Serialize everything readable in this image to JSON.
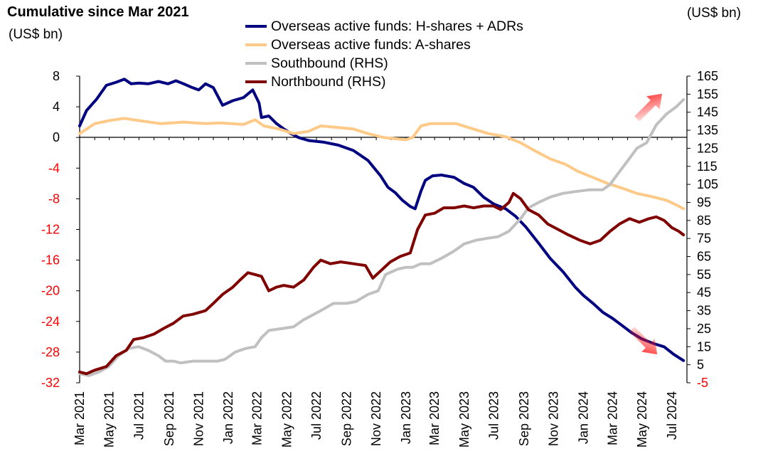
{
  "header": {
    "title": "Cumulative since Mar 2021",
    "left_unit": "(US$ bn)",
    "right_unit": "(US$ bn)"
  },
  "chart_data": {
    "type": "line",
    "title": "Cumulative since Mar 2021",
    "legend_position": "top",
    "grid": false,
    "x_ticks": [
      "Mar 2021",
      "May 2021",
      "Jul 2021",
      "Sep 2021",
      "Nov 2021",
      "Jan 2022",
      "Mar 2022",
      "May 2022",
      "Jul 2022",
      "Sep 2022",
      "Nov 2022",
      "Jan 2023",
      "Mar 2023",
      "May 2023",
      "Jul 2023",
      "Sep 2023",
      "Nov 2023",
      "Jan 2024",
      "Mar 2024",
      "May 2024",
      "Jul 2024"
    ],
    "x_range": [
      "2021-03-01",
      "2024-08-01"
    ],
    "y_left": {
      "unit": "(US$ bn)",
      "range": [
        -32,
        8
      ],
      "ticks": [
        8,
        4,
        0,
        -4,
        -8,
        -12,
        -16,
        -20,
        -24,
        -28,
        -32
      ],
      "negative_tick_color": "#ff0000"
    },
    "y_right": {
      "unit": "(US$ bn)",
      "range": [
        -5,
        165
      ],
      "ticks": [
        165,
        155,
        145,
        135,
        125,
        115,
        105,
        95,
        85,
        75,
        65,
        55,
        45,
        35,
        25,
        15,
        5,
        -5
      ],
      "negative_tick_color": "#ff0000"
    },
    "series": [
      {
        "name": "Overseas active funds: H-shares + ADRs",
        "axis": "left",
        "color": "#000080",
        "points": [
          [
            "2021-03-01",
            1.5
          ],
          [
            "2021-03-15",
            3.5
          ],
          [
            "2021-04-05",
            5.0
          ],
          [
            "2021-04-25",
            6.8
          ],
          [
            "2021-05-15",
            7.2
          ],
          [
            "2021-06-01",
            7.6
          ],
          [
            "2021-06-15",
            7.0
          ],
          [
            "2021-07-01",
            7.1
          ],
          [
            "2021-07-20",
            7.0
          ],
          [
            "2021-08-10",
            7.3
          ],
          [
            "2021-08-30",
            7.0
          ],
          [
            "2021-09-15",
            7.4
          ],
          [
            "2021-10-01",
            7.0
          ],
          [
            "2021-10-15",
            6.6
          ],
          [
            "2021-11-01",
            6.2
          ],
          [
            "2021-11-15",
            7.0
          ],
          [
            "2021-12-01",
            6.5
          ],
          [
            "2021-12-20",
            4.2
          ],
          [
            "2022-01-10",
            4.8
          ],
          [
            "2022-02-01",
            5.2
          ],
          [
            "2022-02-20",
            6.2
          ],
          [
            "2022-03-05",
            4.5
          ],
          [
            "2022-03-10",
            2.6
          ],
          [
            "2022-03-25",
            2.8
          ],
          [
            "2022-04-10",
            1.8
          ],
          [
            "2022-04-25",
            1.1
          ],
          [
            "2022-05-10",
            0.5
          ],
          [
            "2022-05-25",
            0.0
          ],
          [
            "2022-06-15",
            -0.4
          ],
          [
            "2022-07-15",
            -0.6
          ],
          [
            "2022-08-15",
            -1.0
          ],
          [
            "2022-09-15",
            -1.7
          ],
          [
            "2022-10-15",
            -3.0
          ],
          [
            "2022-11-10",
            -5.0
          ],
          [
            "2022-11-25",
            -6.5
          ],
          [
            "2022-12-10",
            -7.2
          ],
          [
            "2022-12-25",
            -8.2
          ],
          [
            "2023-01-10",
            -9.0
          ],
          [
            "2023-01-20",
            -9.3
          ],
          [
            "2023-02-01",
            -7.0
          ],
          [
            "2023-02-10",
            -5.6
          ],
          [
            "2023-02-25",
            -5.0
          ],
          [
            "2023-03-15",
            -4.9
          ],
          [
            "2023-04-10",
            -5.2
          ],
          [
            "2023-05-01",
            -6.0
          ],
          [
            "2023-05-20",
            -6.5
          ],
          [
            "2023-06-10",
            -7.8
          ],
          [
            "2023-07-01",
            -8.7
          ],
          [
            "2023-07-25",
            -9.3
          ],
          [
            "2023-08-15",
            -10.3
          ],
          [
            "2023-09-05",
            -11.7
          ],
          [
            "2023-10-01",
            -13.8
          ],
          [
            "2023-10-25",
            -15.8
          ],
          [
            "2023-11-20",
            -17.5
          ],
          [
            "2023-12-15",
            -19.5
          ],
          [
            "2024-01-01",
            -20.6
          ],
          [
            "2024-01-20",
            -21.6
          ],
          [
            "2024-02-10",
            -22.8
          ],
          [
            "2024-03-01",
            -23.6
          ],
          [
            "2024-03-20",
            -24.5
          ],
          [
            "2024-04-10",
            -25.5
          ],
          [
            "2024-05-01",
            -26.3
          ],
          [
            "2024-05-25",
            -26.9
          ],
          [
            "2024-06-15",
            -27.3
          ],
          [
            "2024-07-05",
            -28.3
          ],
          [
            "2024-07-25",
            -29.1
          ]
        ]
      },
      {
        "name": "Overseas active funds: A-shares",
        "axis": "left",
        "color": "#ffc988",
        "points": [
          [
            "2021-03-01",
            0.5
          ],
          [
            "2021-04-01",
            1.8
          ],
          [
            "2021-05-01",
            2.2
          ],
          [
            "2021-06-01",
            2.5
          ],
          [
            "2021-07-01",
            2.2
          ],
          [
            "2021-08-15",
            1.8
          ],
          [
            "2021-10-01",
            2.0
          ],
          [
            "2021-11-15",
            1.8
          ],
          [
            "2021-12-15",
            1.9
          ],
          [
            "2022-02-01",
            1.7
          ],
          [
            "2022-02-25",
            2.3
          ],
          [
            "2022-03-15",
            1.5
          ],
          [
            "2022-04-15",
            1.1
          ],
          [
            "2022-05-15",
            0.5
          ],
          [
            "2022-06-15",
            0.8
          ],
          [
            "2022-07-10",
            1.5
          ],
          [
            "2022-08-15",
            1.3
          ],
          [
            "2022-09-15",
            1.1
          ],
          [
            "2022-10-15",
            0.5
          ],
          [
            "2022-11-15",
            0.0
          ],
          [
            "2023-01-01",
            -0.3
          ],
          [
            "2023-01-15",
            0.0
          ],
          [
            "2023-02-01",
            1.5
          ],
          [
            "2023-02-20",
            1.8
          ],
          [
            "2023-04-15",
            1.8
          ],
          [
            "2023-05-15",
            1.2
          ],
          [
            "2023-06-20",
            0.5
          ],
          [
            "2023-07-25",
            0.1
          ],
          [
            "2023-08-25",
            -0.7
          ],
          [
            "2023-09-25",
            -1.8
          ],
          [
            "2023-10-25",
            -2.8
          ],
          [
            "2023-11-25",
            -3.5
          ],
          [
            "2023-12-20",
            -4.4
          ],
          [
            "2024-01-20",
            -5.2
          ],
          [
            "2024-02-20",
            -6.0
          ],
          [
            "2024-03-20",
            -6.6
          ],
          [
            "2024-04-20",
            -7.3
          ],
          [
            "2024-05-20",
            -7.7
          ],
          [
            "2024-06-20",
            -8.2
          ],
          [
            "2024-07-10",
            -8.8
          ],
          [
            "2024-07-25",
            -9.3
          ]
        ]
      },
      {
        "name": "Southbound (RHS)",
        "axis": "right",
        "color": "#c0c0c0",
        "points": [
          [
            "2021-03-01",
            0
          ],
          [
            "2021-03-20",
            -1
          ],
          [
            "2021-04-10",
            1
          ],
          [
            "2021-04-30",
            4
          ],
          [
            "2021-05-20",
            10
          ],
          [
            "2021-06-10",
            14
          ],
          [
            "2021-06-30",
            15
          ],
          [
            "2021-07-20",
            13
          ],
          [
            "2021-08-10",
            10
          ],
          [
            "2021-08-25",
            7
          ],
          [
            "2021-09-10",
            7
          ],
          [
            "2021-09-25",
            6
          ],
          [
            "2021-10-20",
            7
          ],
          [
            "2021-11-15",
            7
          ],
          [
            "2021-12-10",
            7
          ],
          [
            "2021-12-25",
            8
          ],
          [
            "2022-01-15",
            12
          ],
          [
            "2022-02-05",
            14
          ],
          [
            "2022-02-25",
            15
          ],
          [
            "2022-03-10",
            20
          ],
          [
            "2022-03-25",
            24
          ],
          [
            "2022-04-20",
            25
          ],
          [
            "2022-05-15",
            26
          ],
          [
            "2022-06-05",
            30
          ],
          [
            "2022-07-10",
            35
          ],
          [
            "2022-08-05",
            39
          ],
          [
            "2022-09-01",
            39
          ],
          [
            "2022-09-20",
            40
          ],
          [
            "2022-10-15",
            44
          ],
          [
            "2022-11-05",
            46
          ],
          [
            "2022-11-20",
            55
          ],
          [
            "2022-12-15",
            58
          ],
          [
            "2023-01-01",
            59
          ],
          [
            "2023-01-15",
            59
          ],
          [
            "2023-02-01",
            61
          ],
          [
            "2023-02-20",
            61
          ],
          [
            "2023-03-15",
            64
          ],
          [
            "2023-04-10",
            68
          ],
          [
            "2023-05-01",
            72
          ],
          [
            "2023-05-25",
            74
          ],
          [
            "2023-06-15",
            75
          ],
          [
            "2023-07-10",
            76
          ],
          [
            "2023-08-01",
            79
          ],
          [
            "2023-08-25",
            86
          ],
          [
            "2023-09-10",
            92
          ],
          [
            "2023-10-01",
            95
          ],
          [
            "2023-10-25",
            98
          ],
          [
            "2023-11-20",
            100
          ],
          [
            "2023-12-15",
            101
          ],
          [
            "2024-01-15",
            102
          ],
          [
            "2024-02-10",
            102
          ],
          [
            "2024-02-25",
            105
          ],
          [
            "2024-03-15",
            112
          ],
          [
            "2024-04-01",
            118
          ],
          [
            "2024-04-20",
            125
          ],
          [
            "2024-05-10",
            128
          ],
          [
            "2024-05-30",
            138
          ],
          [
            "2024-06-20",
            144
          ],
          [
            "2024-07-10",
            148
          ],
          [
            "2024-07-25",
            152
          ]
        ]
      },
      {
        "name": "Northbound (RHS)",
        "axis": "right",
        "color": "#800000",
        "points": [
          [
            "2021-03-01",
            1
          ],
          [
            "2021-03-15",
            0
          ],
          [
            "2021-04-01",
            2
          ],
          [
            "2021-04-25",
            4
          ],
          [
            "2021-05-15",
            10
          ],
          [
            "2021-06-05",
            13
          ],
          [
            "2021-06-20",
            19
          ],
          [
            "2021-07-10",
            20
          ],
          [
            "2021-08-01",
            22
          ],
          [
            "2021-08-20",
            25
          ],
          [
            "2021-09-10",
            28
          ],
          [
            "2021-09-30",
            32
          ],
          [
            "2021-10-20",
            33
          ],
          [
            "2021-11-15",
            35
          ],
          [
            "2021-12-01",
            39
          ],
          [
            "2021-12-20",
            44
          ],
          [
            "2022-01-10",
            48
          ],
          [
            "2022-01-25",
            52
          ],
          [
            "2022-02-10",
            56
          ],
          [
            "2022-02-25",
            55
          ],
          [
            "2022-03-10",
            54
          ],
          [
            "2022-03-25",
            46
          ],
          [
            "2022-04-10",
            48
          ],
          [
            "2022-04-25",
            49
          ],
          [
            "2022-05-15",
            48
          ],
          [
            "2022-06-05",
            52
          ],
          [
            "2022-06-25",
            59
          ],
          [
            "2022-07-10",
            63
          ],
          [
            "2022-07-30",
            61
          ],
          [
            "2022-08-20",
            62
          ],
          [
            "2022-09-15",
            61
          ],
          [
            "2022-10-10",
            60
          ],
          [
            "2022-10-25",
            53
          ],
          [
            "2022-11-10",
            57
          ],
          [
            "2022-11-30",
            62
          ],
          [
            "2022-12-20",
            65
          ],
          [
            "2023-01-10",
            67
          ],
          [
            "2023-01-25",
            80
          ],
          [
            "2023-02-10",
            88
          ],
          [
            "2023-03-01",
            89
          ],
          [
            "2023-03-20",
            92
          ],
          [
            "2023-04-10",
            92
          ],
          [
            "2023-05-01",
            93
          ],
          [
            "2023-05-20",
            92
          ],
          [
            "2023-06-10",
            93
          ],
          [
            "2023-06-30",
            93
          ],
          [
            "2023-07-15",
            91
          ],
          [
            "2023-08-01",
            95
          ],
          [
            "2023-08-10",
            100
          ],
          [
            "2023-08-25",
            97
          ],
          [
            "2023-09-10",
            91
          ],
          [
            "2023-10-01",
            88
          ],
          [
            "2023-10-20",
            83
          ],
          [
            "2023-11-10",
            80
          ],
          [
            "2023-12-01",
            77
          ],
          [
            "2023-12-25",
            74
          ],
          [
            "2024-01-15",
            72
          ],
          [
            "2024-02-05",
            74
          ],
          [
            "2024-02-25",
            79
          ],
          [
            "2024-03-15",
            83
          ],
          [
            "2024-04-05",
            86
          ],
          [
            "2024-04-25",
            84
          ],
          [
            "2024-05-15",
            86
          ],
          [
            "2024-05-30",
            87
          ],
          [
            "2024-06-15",
            85
          ],
          [
            "2024-07-01",
            81
          ],
          [
            "2024-07-15",
            79
          ],
          [
            "2024-07-25",
            77
          ]
        ]
      }
    ],
    "annotations": [
      {
        "type": "arrow",
        "direction": "up",
        "color": "#ff2020",
        "near_date": "2024-05-15",
        "near_right_value": 148
      },
      {
        "type": "arrow",
        "direction": "down",
        "color": "#ff2020",
        "near_date": "2024-05-05",
        "near_right_value": 18
      }
    ]
  }
}
